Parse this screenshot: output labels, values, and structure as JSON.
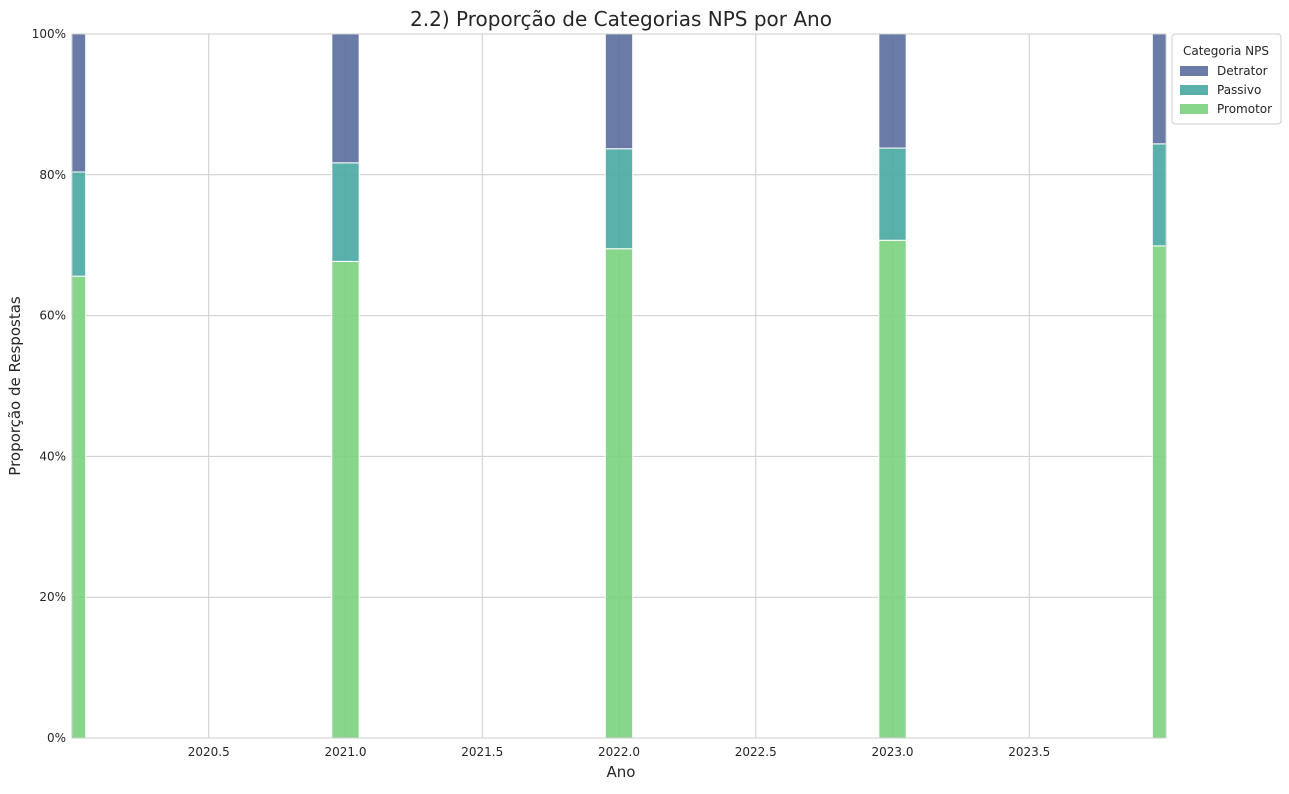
{
  "chart_data": {
    "type": "bar",
    "stacked": true,
    "title": "2.2) Proporção de Categorias NPS por Ano",
    "xlabel": "Ano",
    "ylabel": "Proporção de Respostas",
    "x": [
      2020,
      2021,
      2022,
      2023,
      2024
    ],
    "xlim": [
      2020.0,
      2024.0
    ],
    "ylim": [
      0,
      1
    ],
    "xticks": [
      2020.5,
      2021.0,
      2021.5,
      2022.0,
      2022.5,
      2023.0,
      2023.5
    ],
    "xtick_labels": [
      "2020.5",
      "2021.0",
      "2021.5",
      "2022.0",
      "2022.5",
      "2023.0",
      "2023.5"
    ],
    "yticks": [
      0,
      0.2,
      0.4,
      0.6,
      0.8,
      1.0
    ],
    "ytick_labels": [
      "0%",
      "20%",
      "40%",
      "60%",
      "80%",
      "100%"
    ],
    "bar_width": 0.1,
    "grid": true,
    "legend": {
      "title": "Categoria NPS",
      "placement": "outside-upper-right",
      "entries": [
        "Detrator",
        "Passivo",
        "Promotor"
      ]
    },
    "series": [
      {
        "name": "Promotor",
        "color": "#7ad27f",
        "values": [
          0.656,
          0.677,
          0.695,
          0.707,
          0.699
        ]
      },
      {
        "name": "Passivo",
        "color": "#48a8a2",
        "values": [
          0.148,
          0.14,
          0.142,
          0.131,
          0.145
        ]
      },
      {
        "name": "Detrator",
        "color": "#5a6d9f",
        "values": [
          0.196,
          0.183,
          0.163,
          0.162,
          0.156
        ]
      }
    ]
  }
}
